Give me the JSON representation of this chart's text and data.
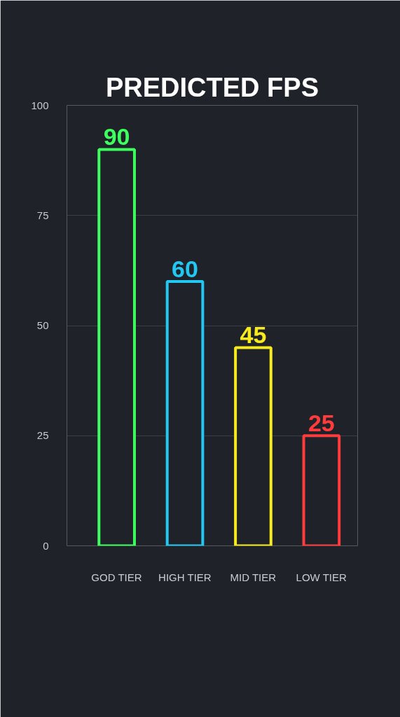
{
  "chart_data": {
    "type": "bar",
    "title": "PREDICTED FPS",
    "categories": [
      "GOD TIER",
      "HIGH TIER",
      "MID TIER",
      "LOW TIER"
    ],
    "values": [
      90,
      60,
      45,
      25
    ],
    "colors": [
      "#3dff5e",
      "#22c8f2",
      "#f7ea1f",
      "#ff3c3c"
    ],
    "ylim": [
      0,
      100
    ],
    "yticks": [
      0,
      25,
      50,
      75,
      100
    ],
    "grid": "y",
    "data_labels": true
  }
}
